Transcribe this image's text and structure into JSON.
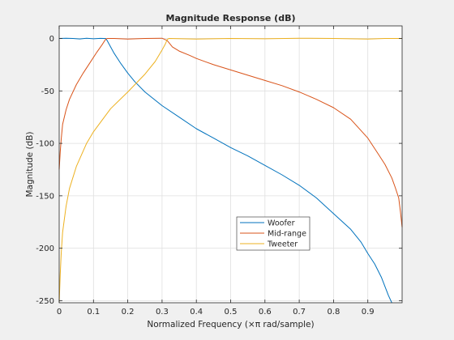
{
  "chart_data": {
    "type": "line",
    "title": "Magnitude Response (dB)",
    "xlabel": "Normalized Frequency (×π rad/sample)",
    "ylabel": "Magnitude (dB)",
    "xlim": [
      0,
      1
    ],
    "ylim": [
      -252,
      12
    ],
    "xticks": [
      0,
      0.1,
      0.2,
      0.3,
      0.4,
      0.5,
      0.6,
      0.7,
      0.8,
      0.9
    ],
    "xtick_labels": [
      "0",
      "0.1",
      "0.2",
      "0.3",
      "0.4",
      "0.5",
      "0.6",
      "0.7",
      "0.8",
      "0.9"
    ],
    "yticks": [
      0,
      -50,
      -100,
      -150,
      -200,
      -250
    ],
    "ytick_labels": [
      "0",
      "-50",
      "-100",
      "-150",
      "-200",
      "-250"
    ],
    "grid": true,
    "legend_position": "lower-center",
    "series": [
      {
        "name": "Woofer",
        "color": "#0072bd",
        "x": [
          0,
          0.02,
          0.04,
          0.06,
          0.08,
          0.1,
          0.12,
          0.135,
          0.14,
          0.15,
          0.16,
          0.18,
          0.2,
          0.22,
          0.25,
          0.3,
          0.35,
          0.4,
          0.45,
          0.5,
          0.55,
          0.6,
          0.65,
          0.7,
          0.75,
          0.8,
          0.85,
          0.88,
          0.9,
          0.92,
          0.94,
          0.96,
          0.97
        ],
        "y": [
          0,
          0.3,
          0,
          -0.4,
          0.2,
          -0.3,
          0.1,
          0,
          -2,
          -8,
          -14,
          -24,
          -33,
          -41,
          -51,
          -64,
          -75,
          -86,
          -95,
          -104,
          -112,
          -121,
          -130,
          -140,
          -152,
          -167,
          -182,
          -194,
          -205,
          -215,
          -228,
          -245,
          -252
        ]
      },
      {
        "name": "Mid-range",
        "color": "#d95319",
        "x": [
          0,
          0.003,
          0.006,
          0.01,
          0.02,
          0.03,
          0.05,
          0.07,
          0.09,
          0.11,
          0.125,
          0.135,
          0.14,
          0.16,
          0.2,
          0.25,
          0.3,
          0.315,
          0.32,
          0.33,
          0.35,
          0.38,
          0.4,
          0.45,
          0.5,
          0.55,
          0.6,
          0.65,
          0.7,
          0.75,
          0.8,
          0.85,
          0.9,
          0.93,
          0.95,
          0.97,
          0.98,
          0.99,
          0.995,
          1.0
        ],
        "y": [
          -125,
          -108,
          -96,
          -82,
          -68,
          -58,
          -44,
          -33,
          -23,
          -13,
          -6,
          -1,
          0,
          0,
          -0.5,
          0,
          0.3,
          -2,
          -4,
          -8,
          -12,
          -16,
          -19,
          -25,
          -30,
          -35,
          -40,
          -45,
          -51,
          -58,
          -66,
          -77,
          -95,
          -110,
          -120,
          -133,
          -142,
          -152,
          -165,
          -180
        ]
      },
      {
        "name": "Tweeter",
        "color": "#edb120",
        "x": [
          0,
          0.003,
          0.006,
          0.01,
          0.02,
          0.03,
          0.05,
          0.08,
          0.1,
          0.15,
          0.2,
          0.25,
          0.28,
          0.3,
          0.31,
          0.315,
          0.32,
          0.4,
          0.5,
          0.6,
          0.7,
          0.8,
          0.9,
          0.95,
          1.0
        ],
        "y": [
          -252,
          -225,
          -205,
          -185,
          -160,
          -143,
          -122,
          -100,
          -89,
          -67,
          -51,
          -34,
          -22,
          -11,
          -5,
          -1,
          0,
          -0.5,
          0,
          -0.3,
          0.3,
          0,
          -0.5,
          0,
          0
        ]
      }
    ]
  }
}
